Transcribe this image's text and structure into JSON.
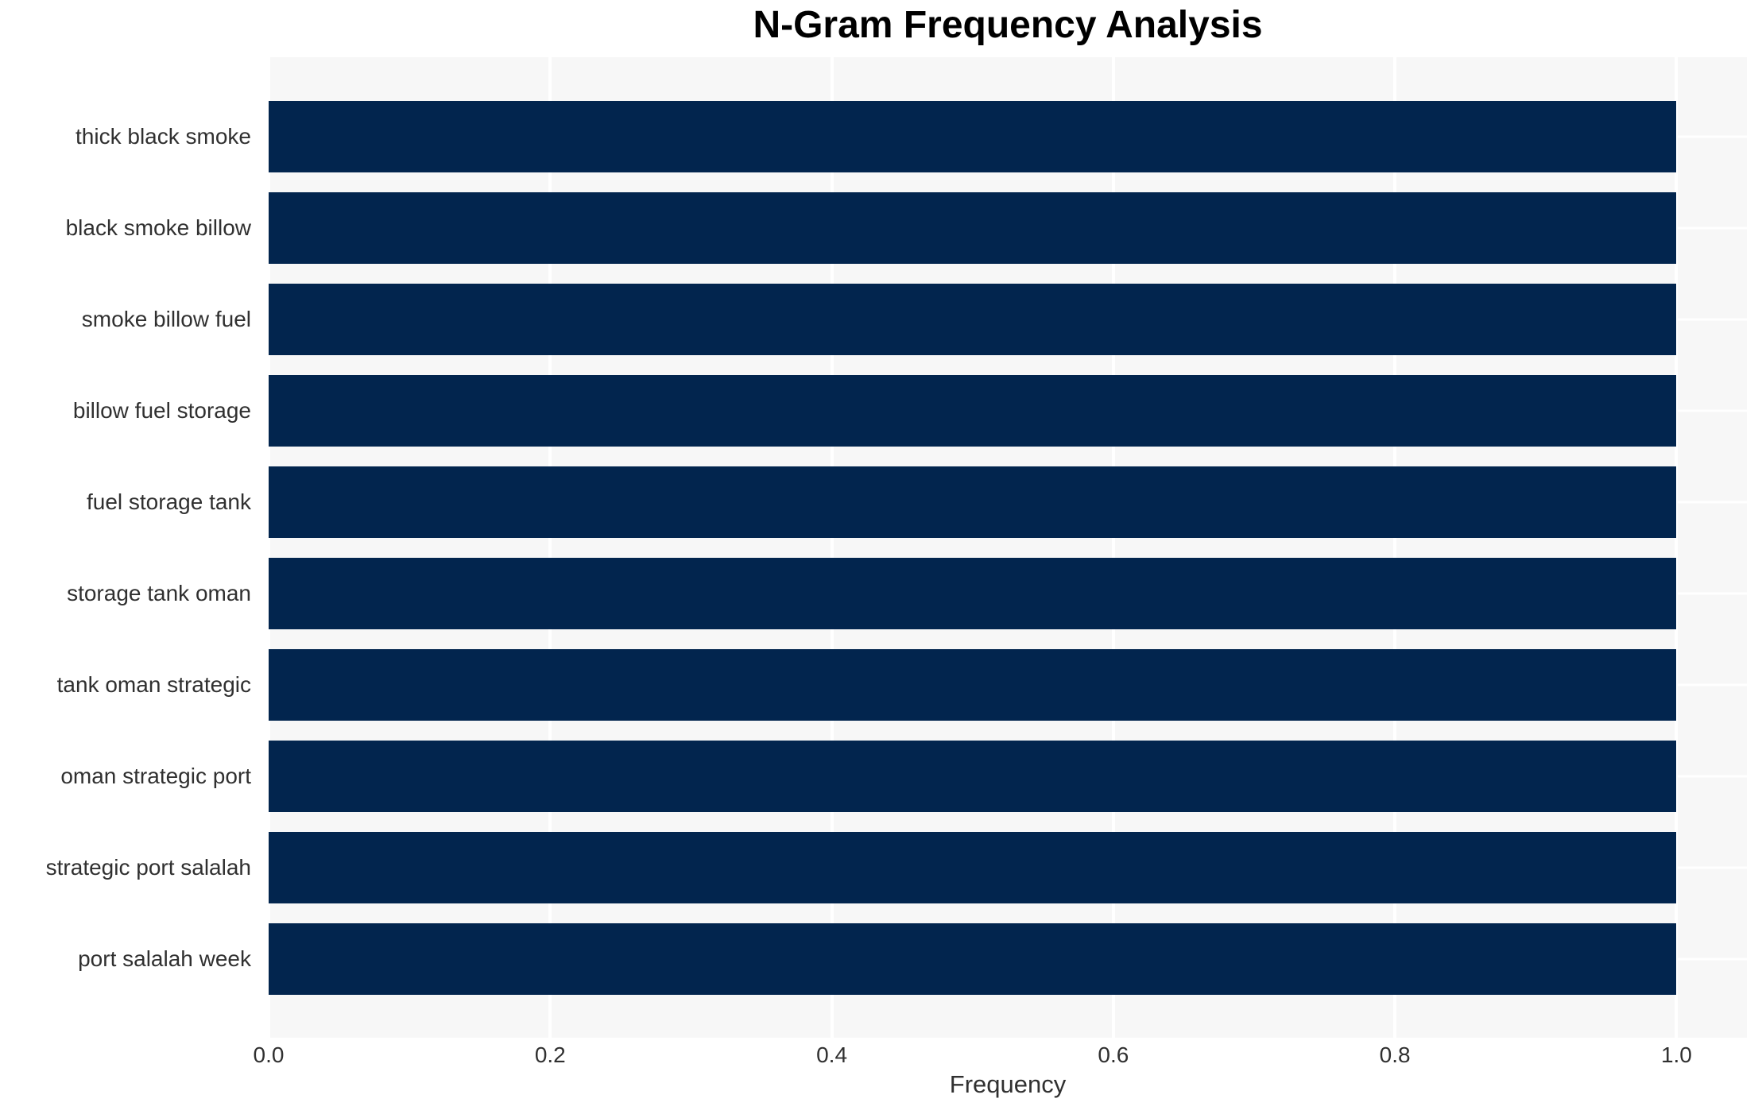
{
  "chart_data": {
    "type": "bar",
    "orientation": "horizontal",
    "title": "N-Gram Frequency Analysis",
    "xlabel": "Frequency",
    "ylabel": "",
    "categories": [
      "thick black smoke",
      "black smoke billow",
      "smoke billow fuel",
      "billow fuel storage",
      "fuel storage tank",
      "storage tank oman",
      "tank oman strategic",
      "oman strategic port",
      "strategic port salalah",
      "port salalah week"
    ],
    "values": [
      1.0,
      1.0,
      1.0,
      1.0,
      1.0,
      1.0,
      1.0,
      1.0,
      1.0,
      1.0
    ],
    "x_ticks": [
      "0.0",
      "0.2",
      "0.4",
      "0.6",
      "0.8",
      "1.0"
    ],
    "x_tick_values": [
      0.0,
      0.2,
      0.4,
      0.6,
      0.8,
      1.0
    ],
    "xlim": [
      0,
      1.05
    ],
    "grid": true,
    "legend": false,
    "colors": {
      "bar": "#02254e",
      "plot_background": "#f7f7f7",
      "gridline": "#ffffff",
      "title_text": "#000000",
      "tick_text": "#303030",
      "page_background": "#ffffff"
    }
  }
}
